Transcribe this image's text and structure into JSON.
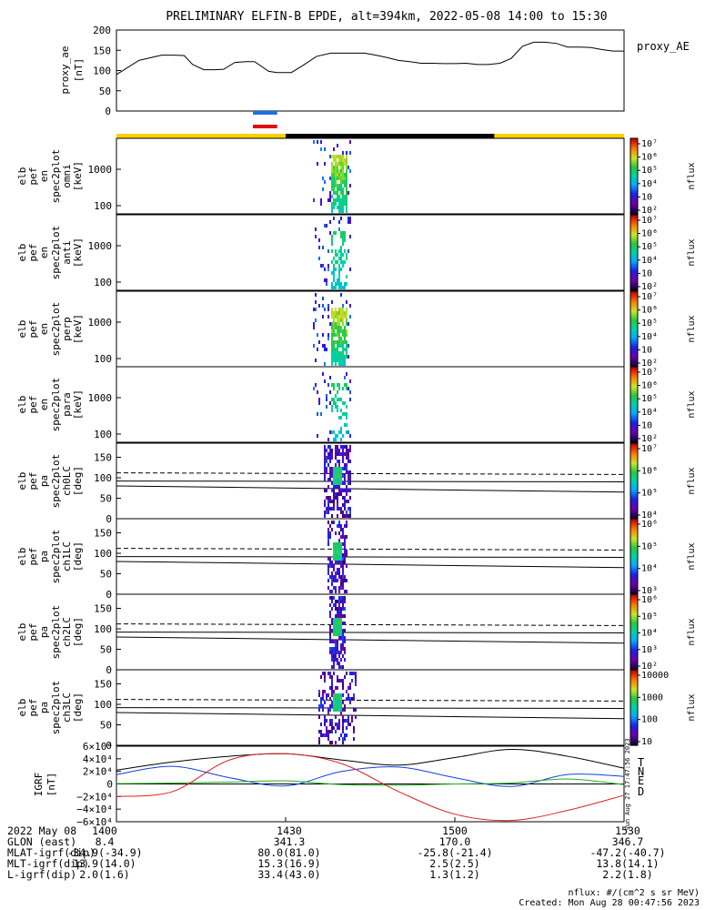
{
  "title": "PRELIMINARY ELFIN-B EPDE, alt=394km, 2022-05-08 14:00 to 15:30",
  "chart_data": {
    "type": "heatmap",
    "time_range": [
      "14:00",
      "15:30"
    ],
    "ae_panel": {
      "ylabel": [
        "proxy_ae",
        "[nT]"
      ],
      "legend": "proxy_AE",
      "ylim": [
        0,
        200
      ],
      "yticks": [
        "0",
        "50",
        "100",
        "150",
        "200"
      ],
      "series": [
        {
          "name": "proxy_AE",
          "x_min": [
            0,
            4,
            8,
            10,
            12,
            13.5,
            15.5,
            17.5,
            19,
            21,
            23,
            24.5,
            27,
            28.5,
            31,
            33,
            35.5,
            38,
            40,
            42,
            44,
            46,
            48,
            50,
            52,
            54,
            56,
            58,
            60,
            62,
            64,
            66,
            68,
            70,
            72,
            74,
            76,
            78,
            80,
            82,
            84,
            86,
            88,
            90
          ],
          "values": [
            90,
            125,
            138,
            138,
            137,
            115,
            102,
            102,
            103,
            120,
            122,
            122,
            98,
            95,
            95,
            112,
            135,
            143,
            143,
            143,
            143,
            138,
            132,
            125,
            122,
            118,
            118,
            117,
            117,
            118,
            115,
            115,
            118,
            130,
            160,
            170,
            170,
            167,
            158,
            158,
            157,
            152,
            148,
            148
          ]
        }
      ]
    },
    "orbit_bar": {
      "segments": [
        {
          "from_min": 0,
          "to_min": 30,
          "color": "#ffd000"
        },
        {
          "from_min": 30,
          "to_min": 67,
          "color": "#000000"
        },
        {
          "from_min": 67,
          "to_min": 90,
          "color": "#ffd000"
        }
      ],
      "marks": [
        {
          "from_min": 24.2,
          "to_min": 28.5,
          "color": "#1f6fe8"
        },
        {
          "from_min": 24.2,
          "to_min": 28.5,
          "color": "#e01010"
        }
      ]
    },
    "energy_panels": [
      {
        "label": [
          "elb",
          "pef",
          "en",
          "spec2plot",
          "omni",
          "[keV]"
        ],
        "yticks": [
          "100",
          "1000"
        ],
        "cb_ticks": [
          "10⁷",
          "10⁶",
          "10⁵",
          "10⁴",
          "10⁳",
          "10²"
        ],
        "cb_label": "nflux",
        "colorbar": "full",
        "intensity": 1.0
      },
      {
        "label": [
          "elb",
          "pef",
          "en",
          "spec2plot",
          "anti",
          "[keV]"
        ],
        "yticks": [
          "100",
          "1000"
        ],
        "cb_ticks": [
          "10⁷",
          "10⁶",
          "10⁵",
          "10⁴",
          "10⁳",
          "10²"
        ],
        "cb_label": "nflux",
        "colorbar": "full",
        "intensity": 0.55
      },
      {
        "label": [
          "elb",
          "pef",
          "en",
          "spec2plot",
          "perp",
          "[keV]"
        ],
        "yticks": [
          "100",
          "1000"
        ],
        "cb_ticks": [
          "10⁷",
          "10⁶",
          "10⁵",
          "10⁴",
          "10⁳",
          "10²"
        ],
        "cb_label": "nflux",
        "colorbar": "full",
        "intensity": 1.0
      },
      {
        "label": [
          "elb",
          "pef",
          "en",
          "spec2plot",
          "para",
          "[keV]"
        ],
        "yticks": [
          "100",
          "1000"
        ],
        "cb_ticks": [
          "10⁷",
          "10⁶",
          "10⁵",
          "10⁴",
          "10⁳",
          "10²"
        ],
        "cb_label": "nflux",
        "colorbar": "full",
        "intensity": 0.5
      }
    ],
    "pa_panels": [
      {
        "label": [
          "elb",
          "pef",
          "pa",
          "spec2plot",
          "ch0LC",
          "[deg]"
        ],
        "yticks": [
          "0",
          "50",
          "100",
          "150"
        ],
        "cb_ticks": [
          "10⁷",
          "10⁶",
          "10⁵",
          "10⁴"
        ],
        "cb_label": "nflux",
        "colorbar": "upper"
      },
      {
        "label": [
          "elb",
          "pef",
          "pa",
          "spec2plot",
          "ch1LC",
          "[deg]"
        ],
        "yticks": [
          "0",
          "50",
          "100",
          "150"
        ],
        "cb_ticks": [
          "10⁶",
          "10⁵",
          "10⁴",
          "10³"
        ],
        "cb_label": "nflux",
        "colorbar": "upper"
      },
      {
        "label": [
          "elb",
          "pef",
          "pa",
          "spec2plot",
          "ch2LC",
          "[deg]"
        ],
        "yticks": [
          "0",
          "50",
          "100",
          "150"
        ],
        "cb_ticks": [
          "10⁶",
          "10⁵",
          "10⁴",
          "10³",
          "10²"
        ],
        "cb_label": "nflux",
        "colorbar": "full"
      },
      {
        "label": [
          "elb",
          "pef",
          "pa",
          "spec2plot",
          "ch3LC",
          "[deg]"
        ],
        "yticks": [
          "0",
          "50",
          "100",
          "150"
        ],
        "cb_ticks": [
          "10000",
          "1000",
          "100",
          "10"
        ],
        "cb_label": "nflux",
        "colorbar": "full"
      }
    ],
    "igrf_panel": {
      "ylabel": [
        "IGRF",
        "[nT]"
      ],
      "ylim": [
        -60000,
        60000
      ],
      "yticks": [
        "6×10⁴",
        "4×10⁴",
        "2×10⁴",
        "0",
        "−2×10⁴",
        "−4×10⁴",
        "−6×10⁴"
      ],
      "side_note": "Sun Aug 27 17:47:56 2023",
      "series": [
        {
          "name": "T",
          "color": "#000000",
          "x_min": [
            0,
            10,
            20,
            30,
            40,
            50,
            60,
            70,
            80,
            90
          ],
          "values": [
            22000,
            35000,
            44000,
            48000,
            38000,
            30000,
            42000,
            55000,
            44000,
            25000
          ]
        },
        {
          "name": "N",
          "color": "#1040e0",
          "x_min": [
            0,
            10,
            20,
            30,
            40,
            50,
            60,
            70,
            80,
            90
          ],
          "values": [
            15000,
            28000,
            10000,
            -3000,
            20000,
            27000,
            10000,
            -4000,
            15000,
            12000
          ]
        },
        {
          "name": "E",
          "color": "#20b020",
          "x_min": [
            0,
            10,
            20,
            30,
            40,
            50,
            60,
            70,
            80,
            90
          ],
          "values": [
            500,
            1500,
            3000,
            5000,
            -1000,
            -2000,
            0,
            1500,
            8000,
            -1000
          ]
        },
        {
          "name": "D",
          "color": "#e02020",
          "x_min": [
            0,
            10,
            20,
            30,
            40,
            50,
            60,
            70,
            80,
            90
          ],
          "values": [
            -20000,
            -12000,
            38000,
            48000,
            32000,
            -12000,
            -48000,
            -58000,
            -42000,
            -18000
          ]
        }
      ]
    },
    "x_axis": {
      "ticks": [
        "1400",
        "1430",
        "1500",
        "1530"
      ],
      "rows": [
        {
          "label": "2022 May 08",
          "values": [
            "1400",
            "1430",
            "1500",
            "1530"
          ]
        },
        {
          "label": "GLON (east)",
          "values": [
            "8.4",
            "341.3",
            "170.0",
            "346.7"
          ]
        },
        {
          "label": "MLAT-igrf(dip)",
          "values": [
            "-34.9(-34.9)",
            "80.0(81.0)",
            "-25.8(-21.4)",
            "-47.2(-40.7)"
          ]
        },
        {
          "label": "MLT-igrf(dip)",
          "values": [
            "13.9(14.0)",
            "15.3(16.9)",
            "2.5(2.5)",
            "13.8(14.1)"
          ]
        },
        {
          "label": "L-igrf(dip)",
          "values": [
            "2.0(1.6)",
            "33.4(43.0)",
            "1.3(1.2)",
            "2.2(1.8)"
          ]
        }
      ]
    }
  },
  "notes": {
    "units": "nflux: #/(cm^2 s sr MeV)",
    "created": "Created: Mon Aug 28 00:47:56 2023"
  }
}
